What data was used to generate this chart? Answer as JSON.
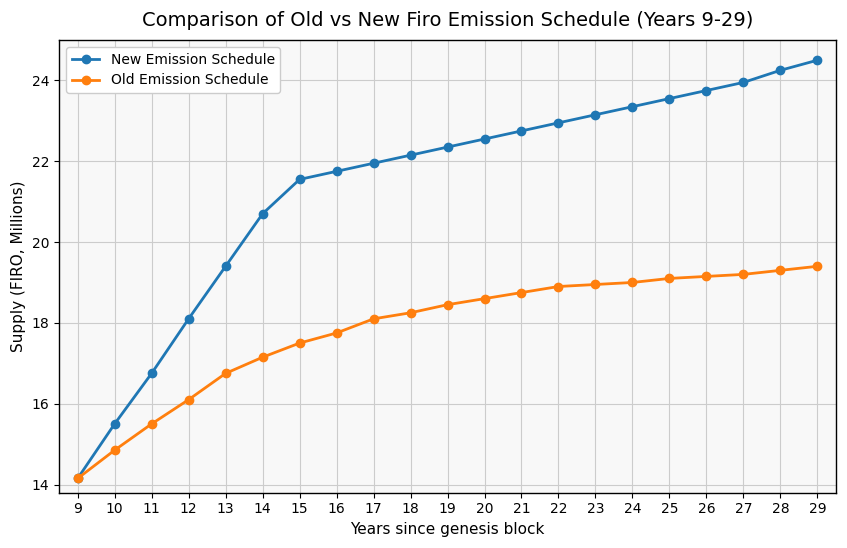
{
  "title": "Comparison of Old vs New Firo Emission Schedule (Years 9-29)",
  "xlabel": "Years since genesis block",
  "ylabel": "Supply (FIRO, Millions)",
  "years": [
    9,
    10,
    11,
    12,
    13,
    14,
    15,
    16,
    17,
    18,
    19,
    20,
    21,
    22,
    23,
    24,
    25,
    26,
    27,
    28,
    29
  ],
  "new_emission": [
    14.15,
    15.5,
    16.75,
    18.1,
    19.4,
    20.7,
    21.55,
    21.75,
    21.95,
    22.15,
    22.35,
    22.55,
    22.75,
    22.95,
    23.15,
    23.35,
    23.55,
    23.75,
    23.95,
    24.25,
    24.5
  ],
  "old_emission": [
    14.15,
    14.85,
    15.5,
    16.1,
    16.75,
    17.15,
    17.5,
    17.75,
    18.1,
    18.25,
    18.45,
    18.6,
    18.75,
    18.9,
    18.95,
    19.0,
    19.1,
    19.15,
    19.2,
    19.3,
    19.4
  ],
  "new_color": "#1f77b4",
  "old_color": "#ff7f0e",
  "new_label": "New Emission Schedule",
  "old_label": "Old Emission Schedule",
  "ylim_min": 13.8,
  "ylim_max": 25.0,
  "yticks": [
    14,
    16,
    18,
    20,
    22,
    24
  ],
  "grid": true,
  "figsize": [
    8.47,
    5.48
  ],
  "dpi": 100,
  "linewidth": 2,
  "markersize": 6,
  "title_fontsize": 14,
  "axes_facecolor": "#f8f8f8",
  "figure_facecolor": "#ffffff",
  "spine_color": "#000000"
}
